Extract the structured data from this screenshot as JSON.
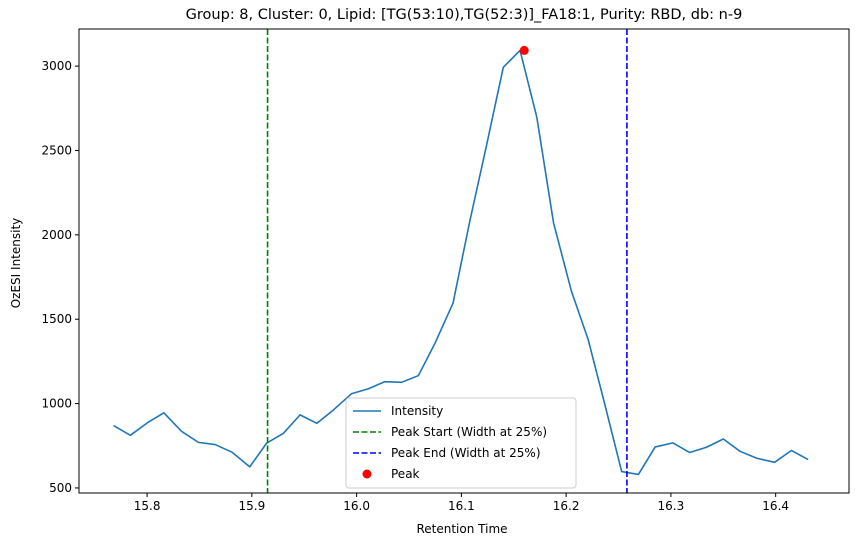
{
  "chart_data": {
    "type": "line",
    "title": "Group: 8, Cluster: 0, Lipid: [TG(53:10),TG(52:3)]_FA18:1, Purity: RBD, db: n-9",
    "xlabel": "Retention Time",
    "ylabel": "OzESI Intensity",
    "xlim": [
      15.735,
      16.47
    ],
    "ylim": [
      470,
      3220
    ],
    "xticks": [
      15.8,
      15.9,
      16.0,
      16.1,
      16.2,
      16.3,
      16.4
    ],
    "yticks": [
      500,
      1000,
      1500,
      2000,
      2500,
      3000
    ],
    "grid": false,
    "legend_position": "lower-center",
    "series": [
      {
        "name": "Intensity",
        "color": "#1f77b4",
        "x": [
          15.768,
          15.784,
          15.8,
          15.816,
          15.833,
          15.849,
          15.865,
          15.881,
          15.898,
          15.914,
          15.93,
          15.946,
          15.962,
          15.978,
          15.995,
          16.011,
          16.027,
          16.043,
          16.059,
          16.075,
          16.092,
          16.108,
          16.124,
          16.14,
          16.156,
          16.172,
          16.188,
          16.205,
          16.221,
          16.237,
          16.253,
          16.269,
          16.285,
          16.302,
          16.318,
          16.334,
          16.35,
          16.366,
          16.382,
          16.399,
          16.415,
          16.431
        ],
        "y": [
          870,
          812,
          885,
          945,
          835,
          770,
          757,
          712,
          625,
          765,
          823,
          933,
          883,
          963,
          1058,
          1087,
          1130,
          1126,
          1166,
          1360,
          1595,
          2080,
          2530,
          2993,
          3093,
          2697,
          2070,
          1667,
          1380,
          993,
          597,
          580,
          743,
          767,
          710,
          741,
          790,
          717,
          676,
          652,
          722,
          668
        ]
      }
    ],
    "vlines": [
      {
        "name": "Peak Start (Width at 25%)",
        "x": 15.915,
        "color": "#008000",
        "style": "dashed"
      },
      {
        "name": "Peak End (Width at 25%)",
        "x": 16.258,
        "color": "#0000ff",
        "style": "dashed"
      }
    ],
    "peak": {
      "name": "Peak",
      "x": 16.16,
      "y": 3093,
      "color": "#ff0000"
    },
    "legend": [
      {
        "label": "Intensity",
        "kind": "line",
        "color": "#1f77b4"
      },
      {
        "label": "Peak Start (Width at 25%)",
        "kind": "dashed",
        "color": "#008000"
      },
      {
        "label": "Peak End (Width at 25%)",
        "kind": "dashed",
        "color": "#0000ff"
      },
      {
        "label": "Peak",
        "kind": "marker",
        "color": "#ff0000"
      }
    ]
  }
}
